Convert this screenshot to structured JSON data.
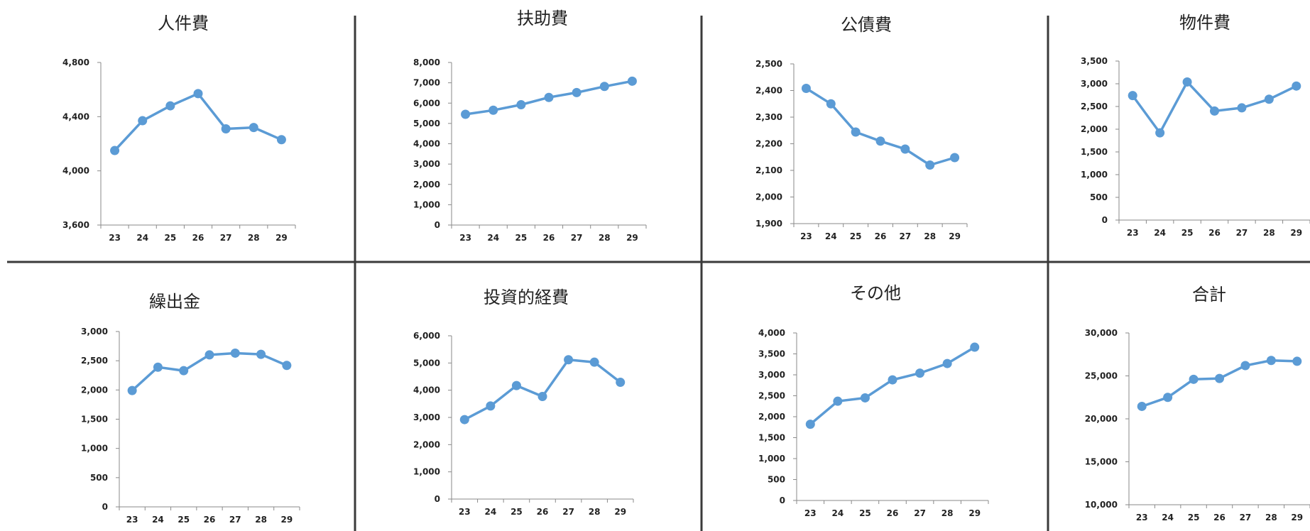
{
  "series_color": "#5b9bd5",
  "chart_data": [
    {
      "type": "line",
      "title": "人件費",
      "x": [
        "23",
        "24",
        "25",
        "26",
        "27",
        "28",
        "29"
      ],
      "series": [
        {
          "values": [
            4150,
            4370,
            4480,
            4570,
            4310,
            4320,
            4230
          ]
        }
      ],
      "ylim": [
        3600,
        4800
      ],
      "yticks": [
        3600,
        4000,
        4400,
        4800
      ],
      "ytick_labels": [
        "3,600",
        "4,000",
        "4,400",
        "4,800"
      ],
      "grid": false,
      "legend": "none"
    },
    {
      "type": "line",
      "title": "扶助費",
      "x": [
        "23",
        "24",
        "25",
        "26",
        "27",
        "28",
        "29"
      ],
      "series": [
        {
          "values": [
            5450,
            5650,
            5920,
            6280,
            6520,
            6820,
            7080
          ]
        }
      ],
      "ylim": [
        0,
        8000
      ],
      "yticks": [
        0,
        1000,
        2000,
        3000,
        4000,
        5000,
        6000,
        7000,
        8000
      ],
      "ytick_labels": [
        "0",
        "1,000",
        "2,000",
        "3,000",
        "4,000",
        "5,000",
        "6,000",
        "7,000",
        "8,000"
      ],
      "grid": false,
      "legend": "none"
    },
    {
      "type": "line",
      "title": "公債費",
      "x": [
        "23",
        "24",
        "25",
        "26",
        "27",
        "28",
        "29"
      ],
      "series": [
        {
          "values": [
            2408,
            2350,
            2244,
            2210,
            2180,
            2120,
            2148
          ]
        }
      ],
      "ylim": [
        1900,
        2500
      ],
      "yticks": [
        1900,
        2000,
        2100,
        2200,
        2300,
        2400,
        2500
      ],
      "ytick_labels": [
        "1,900",
        "2,000",
        "2,100",
        "2,200",
        "2,300",
        "2,400",
        "2,500"
      ],
      "grid": false,
      "legend": "none"
    },
    {
      "type": "line",
      "title": "物件費",
      "x": [
        "23",
        "24",
        "25",
        "26",
        "27",
        "28",
        "29"
      ],
      "series": [
        {
          "values": [
            2740,
            1920,
            3040,
            2400,
            2470,
            2660,
            2950
          ]
        }
      ],
      "ylim": [
        0,
        3500
      ],
      "yticks": [
        0,
        500,
        1000,
        1500,
        2000,
        2500,
        3000,
        3500
      ],
      "ytick_labels": [
        "0",
        "500",
        "1,000",
        "1,500",
        "2,000",
        "2,500",
        "3,000",
        "3,500"
      ],
      "grid": false,
      "legend": "none"
    },
    {
      "type": "line",
      "title": "繰出金",
      "x": [
        "23",
        "24",
        "25",
        "26",
        "27",
        "28",
        "29"
      ],
      "series": [
        {
          "values": [
            1990,
            2390,
            2330,
            2600,
            2630,
            2610,
            2420
          ]
        }
      ],
      "ylim": [
        0,
        3000
      ],
      "yticks": [
        0,
        500,
        1000,
        1500,
        2000,
        2500,
        3000
      ],
      "ytick_labels": [
        "0",
        "500",
        "1,000",
        "1,500",
        "2,000",
        "2,500",
        "3,000"
      ],
      "grid": false,
      "legend": "none"
    },
    {
      "type": "line",
      "title": "投資的経費",
      "x": [
        "23",
        "24",
        "25",
        "26",
        "27",
        "28",
        "29"
      ],
      "series": [
        {
          "values": [
            2920,
            3420,
            4170,
            3770,
            5120,
            5030,
            4290
          ]
        }
      ],
      "ylim": [
        0,
        6000
      ],
      "yticks": [
        0,
        1000,
        2000,
        3000,
        4000,
        5000,
        6000
      ],
      "ytick_labels": [
        "0",
        "1,000",
        "2,000",
        "3,000",
        "4,000",
        "5,000",
        "6,000"
      ],
      "grid": false,
      "legend": "none"
    },
    {
      "type": "line",
      "title": "その他",
      "x": [
        "23",
        "24",
        "25",
        "26",
        "27",
        "28",
        "29"
      ],
      "series": [
        {
          "values": [
            1820,
            2370,
            2450,
            2880,
            3040,
            3270,
            3660
          ]
        }
      ],
      "ylim": [
        0,
        4000
      ],
      "yticks": [
        0,
        500,
        1000,
        1500,
        2000,
        2500,
        3000,
        3500,
        4000
      ],
      "ytick_labels": [
        "0",
        "500",
        "1,000",
        "1,500",
        "2,000",
        "2,500",
        "3,000",
        "3,500",
        "4,000"
      ],
      "grid": false,
      "legend": "none"
    },
    {
      "type": "line",
      "title": "合計",
      "x": [
        "23",
        "24",
        "25",
        "26",
        "27",
        "28",
        "29"
      ],
      "series": [
        {
          "values": [
            21450,
            22500,
            24600,
            24700,
            26200,
            26800,
            26700
          ]
        }
      ],
      "ylim": [
        10000,
        30000
      ],
      "yticks": [
        10000,
        15000,
        20000,
        25000,
        30000
      ],
      "ytick_labels": [
        "10,000",
        "15,000",
        "20,000",
        "25,000",
        "30,000"
      ],
      "grid": false,
      "legend": "none"
    }
  ]
}
